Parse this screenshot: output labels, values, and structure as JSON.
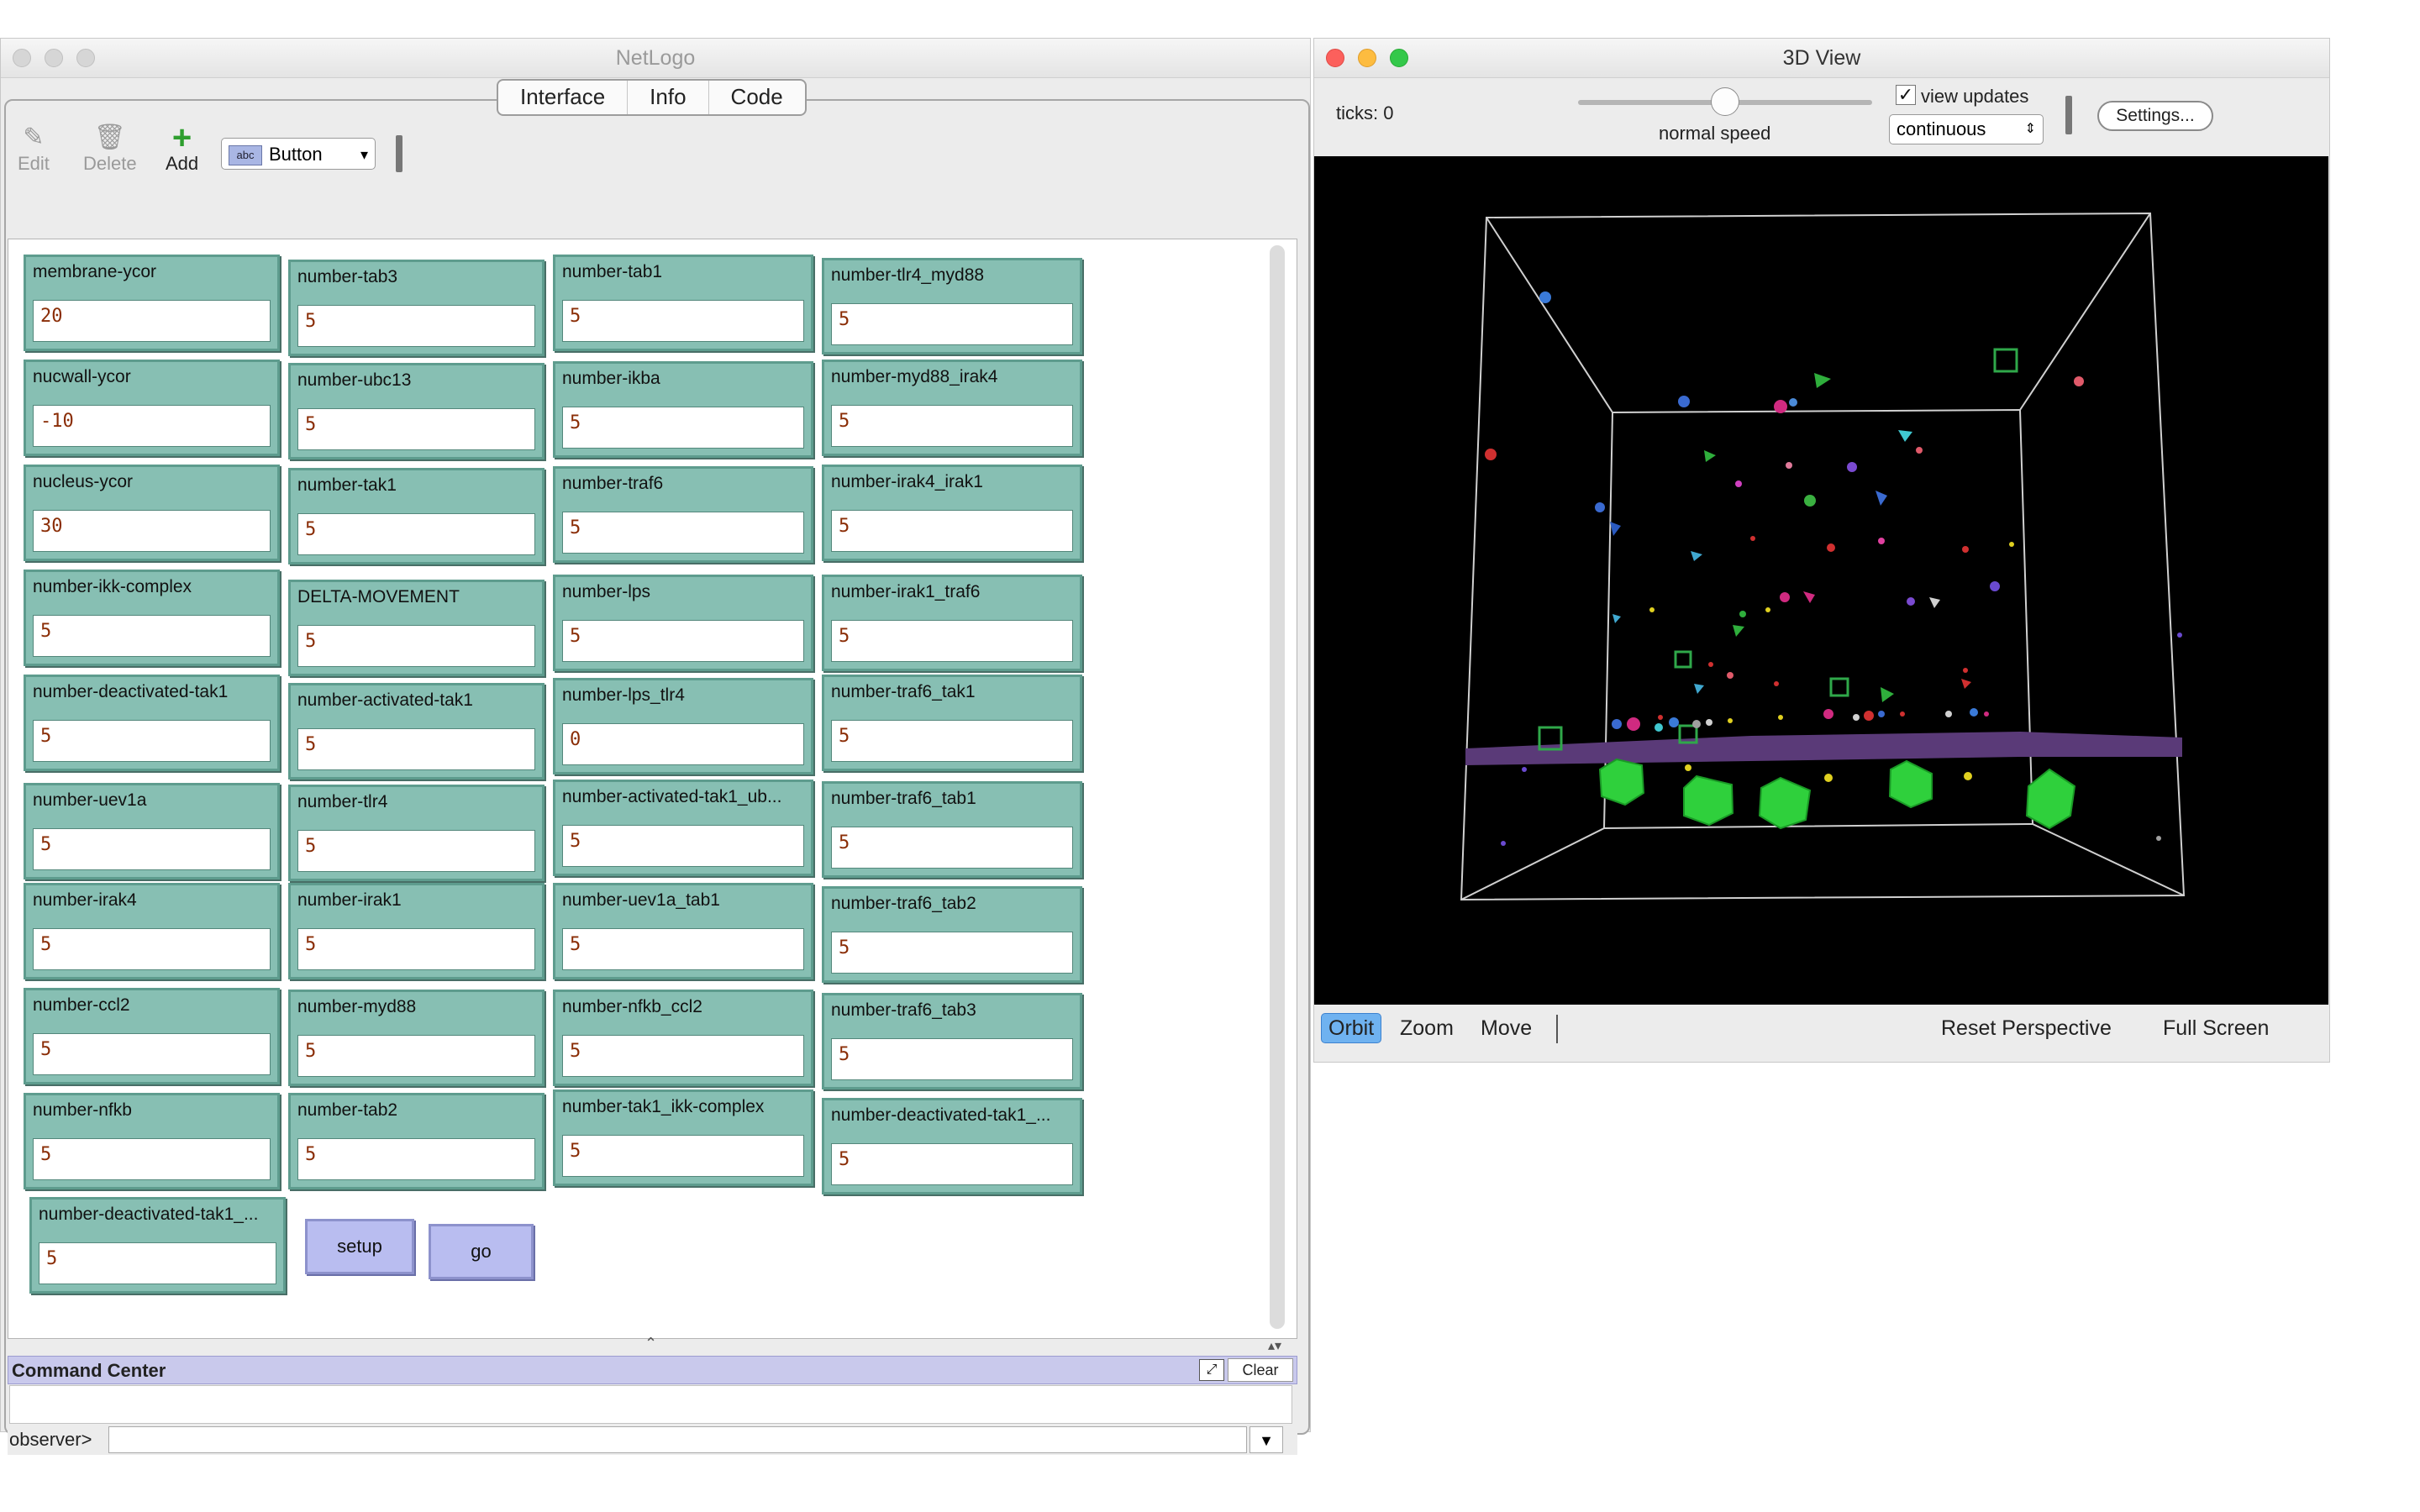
{
  "netlogo": {
    "title": "NetLogo",
    "tabs": [
      "Interface",
      "Info",
      "Code"
    ],
    "toolbar": {
      "edit": "Edit",
      "delete": "Delete",
      "add": "Add",
      "widget_type": "Button",
      "widget_type_icon": "abc"
    },
    "widgets": [
      {
        "label": "membrane-ycor",
        "value": "20"
      },
      {
        "label": "number-tab3",
        "value": "5"
      },
      {
        "label": "number-tab1",
        "value": "5"
      },
      {
        "label": "number-tlr4_myd88",
        "value": "5"
      },
      {
        "label": "nucwall-ycor",
        "value": "-10"
      },
      {
        "label": "number-ubc13",
        "value": "5"
      },
      {
        "label": "number-ikba",
        "value": "5"
      },
      {
        "label": "number-myd88_irak4",
        "value": "5"
      },
      {
        "label": "nucleus-ycor",
        "value": "30"
      },
      {
        "label": "number-tak1",
        "value": "5"
      },
      {
        "label": "number-traf6",
        "value": "5"
      },
      {
        "label": "number-irak4_irak1",
        "value": "5"
      },
      {
        "label": "number-ikk-complex",
        "value": "5"
      },
      {
        "label": "DELTA-MOVEMENT",
        "value": "5"
      },
      {
        "label": "number-lps",
        "value": "5"
      },
      {
        "label": "number-irak1_traf6",
        "value": "5"
      },
      {
        "label": "number-deactivated-tak1",
        "value": "5"
      },
      {
        "label": "number-activated-tak1",
        "value": "5"
      },
      {
        "label": "number-lps_tlr4",
        "value": "0"
      },
      {
        "label": "number-traf6_tak1",
        "value": "5"
      },
      {
        "label": "number-uev1a",
        "value": "5"
      },
      {
        "label": "number-tlr4",
        "value": "5"
      },
      {
        "label": "number-activated-tak1_ub...",
        "value": "5"
      },
      {
        "label": "number-traf6_tab1",
        "value": "5"
      },
      {
        "label": "number-irak4",
        "value": "5"
      },
      {
        "label": "number-irak1",
        "value": "5"
      },
      {
        "label": "number-uev1a_tab1",
        "value": "5"
      },
      {
        "label": "number-traf6_tab2",
        "value": "5"
      },
      {
        "label": "number-ccl2",
        "value": "5"
      },
      {
        "label": "number-myd88",
        "value": "5"
      },
      {
        "label": "number-nfkb_ccl2",
        "value": "5"
      },
      {
        "label": "number-traf6_tab3",
        "value": "5"
      },
      {
        "label": "number-nfkb",
        "value": "5"
      },
      {
        "label": "number-tab2",
        "value": "5"
      },
      {
        "label": "number-tak1_ikk-complex",
        "value": "5"
      },
      {
        "label": "number-deactivated-tak1_...",
        "value": "5"
      },
      {
        "label": "number-deactivated-tak1_...",
        "value": "5"
      }
    ],
    "buttons": {
      "setup": "setup",
      "go": "go"
    },
    "command_center": {
      "label": "Command Center",
      "clear": "Clear",
      "prompt": "observer>",
      "input_value": ""
    }
  },
  "view3d": {
    "title": "3D View",
    "ticks": "ticks: 0",
    "speed_label": "normal speed",
    "speed": 0.5,
    "view_updates_label": "view updates",
    "view_updates_checked": "✓",
    "update_mode": "continuous",
    "settings": "Settings...",
    "controls": {
      "orbit": "Orbit",
      "zoom": "Zoom",
      "move": "Move",
      "reset": "Reset Perspective",
      "fullscreen": "Full Screen"
    },
    "colors": {
      "membrane": "#5a3a78",
      "cube": "#2fd03c",
      "box": "#d0d0d0"
    }
  }
}
